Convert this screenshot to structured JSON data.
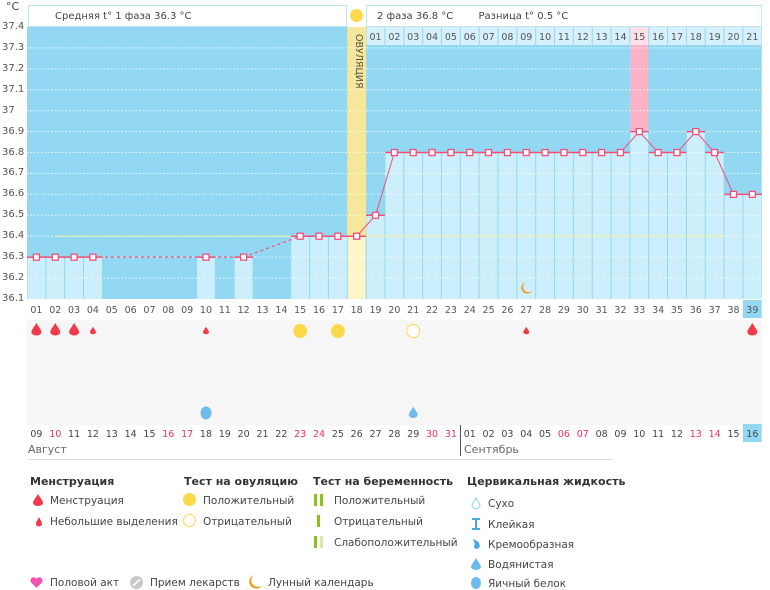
{
  "header": {
    "unit": "°C",
    "phase1": "Средняя t° 1 фаза 36.3 °C",
    "phase2": "2 фаза 36.8 °C",
    "diff": "Разница t° 0.5 °C",
    "ovulation_label": "ОВУЛЯЦИЯ"
  },
  "chart_data": {
    "type": "line",
    "ylabel": "°C",
    "ylim": [
      36.1,
      37.4
    ],
    "y_ticks": [
      "37.4",
      "37.3",
      "37.2",
      "37.1",
      "37",
      "36.9",
      "36.8",
      "36.7",
      "36.6",
      "36.5",
      "36.4",
      "36.3",
      "36.2",
      "36.1"
    ],
    "cycle_days": [
      "01",
      "02",
      "03",
      "04",
      "05",
      "06",
      "07",
      "08",
      "09",
      "10",
      "11",
      "12",
      "13",
      "14",
      "15",
      "16",
      "17",
      "18",
      "19",
      "20",
      "21",
      "22",
      "23",
      "24",
      "25",
      "26",
      "27",
      "28",
      "29",
      "30",
      "31",
      "32",
      "33",
      "34",
      "35",
      "36",
      "37",
      "38",
      "39"
    ],
    "phase2_days": [
      "01",
      "02",
      "03",
      "04",
      "05",
      "06",
      "07",
      "08",
      "09",
      "10",
      "11",
      "12",
      "13",
      "14",
      "15",
      "16",
      "17",
      "18",
      "19",
      "20",
      "21"
    ],
    "temperatures": [
      36.3,
      36.3,
      36.3,
      36.3,
      null,
      null,
      null,
      null,
      null,
      36.3,
      null,
      36.3,
      null,
      null,
      36.4,
      36.4,
      36.4,
      36.4,
      36.5,
      36.8,
      36.8,
      36.8,
      36.8,
      36.8,
      36.8,
      36.8,
      36.8,
      36.8,
      36.8,
      36.8,
      36.8,
      36.8,
      36.9,
      36.8,
      36.8,
      36.9,
      36.8,
      36.6,
      36.6
    ],
    "coverline": 36.4,
    "ovulation_day": 18,
    "highlight_phase2_day": 15,
    "current_day": 39,
    "dates": [
      "09",
      "10",
      "11",
      "12",
      "13",
      "14",
      "15",
      "16",
      "17",
      "18",
      "19",
      "20",
      "21",
      "22",
      "23",
      "24",
      "25",
      "26",
      "27",
      "28",
      "29",
      "30",
      "31",
      "01",
      "02",
      "03",
      "04",
      "05",
      "06",
      "07",
      "08",
      "09",
      "10",
      "11",
      "12",
      "13",
      "14",
      "15",
      "16"
    ],
    "weekend_dates_idx": [
      1,
      7,
      8,
      14,
      15,
      21,
      22,
      28,
      29,
      35,
      36
    ],
    "months": [
      "Август",
      "Сентябрь"
    ],
    "menstruation": {
      "heavy": [
        1,
        2,
        3,
        39
      ],
      "light": [
        4,
        10,
        27
      ]
    },
    "ovulation_test": {
      "positive": [
        15,
        17
      ],
      "negative": [
        21
      ]
    },
    "cervical_fluid": {
      "egg_white": [
        10
      ],
      "watery": [
        21
      ]
    },
    "moon": [
      27
    ]
  },
  "colors": {
    "bg": "#93d8f2",
    "bar": "#cdeefb",
    "line": "#f0507a",
    "ovulation": "#f7e79a",
    "pink": "#fbb3c8",
    "weekend": "#e8335f"
  },
  "legend": {
    "menstruation": {
      "title": "Менструация",
      "items": [
        "Менструация",
        "Небольшие выделения"
      ]
    },
    "ovulation_test": {
      "title": "Тест на овуляцию",
      "items": [
        "Положительный",
        "Отрицательный"
      ]
    },
    "pregnancy_test": {
      "title": "Тест на беременность",
      "items": [
        "Положительный",
        "Отрицательный",
        "Слабоположительный"
      ]
    },
    "cervical": {
      "title": "Цервикальная жидкость",
      "items": [
        "Сухо",
        "Клейкая",
        "Кремообразная",
        "Водянистая",
        "Яичный белок"
      ]
    },
    "other": [
      "Половой акт",
      "Прием лекарств",
      "Лунный календарь"
    ]
  }
}
